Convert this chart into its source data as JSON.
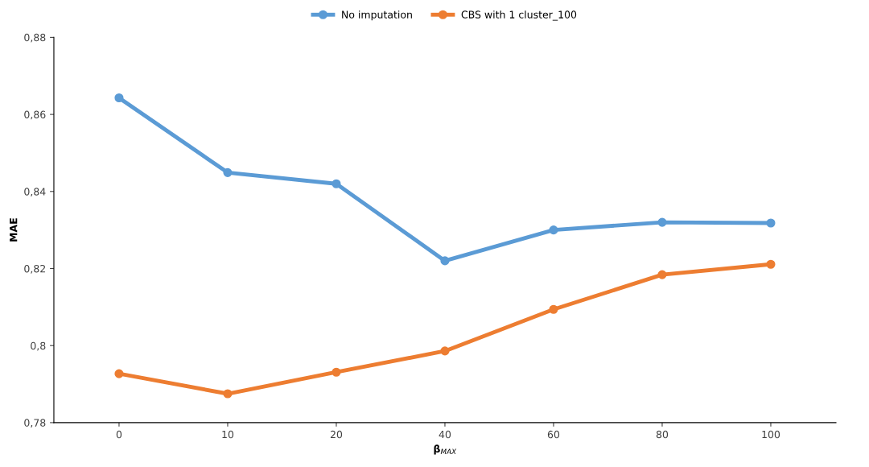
{
  "chart_data": {
    "type": "line",
    "xlabel": "β$_{MAX}$",
    "ylabel": "MAE",
    "categories": [
      "0",
      "10",
      "20",
      "40",
      "60",
      "80",
      "100"
    ],
    "series": [
      {
        "name": "No imputation",
        "color": "#5b9bd5",
        "values": [
          0.8643,
          0.8449,
          0.842,
          0.822,
          0.83,
          0.832,
          0.8318
        ]
      },
      {
        "name": "CBS with 1 cluster_100",
        "color": "#ed7d31",
        "values": [
          0.7927,
          0.7875,
          0.7931,
          0.7986,
          0.8094,
          0.8184,
          0.8211
        ]
      }
    ],
    "ylim": [
      0.78,
      0.88
    ],
    "yticks": [
      {
        "value": 0.78,
        "label": "0,78"
      },
      {
        "value": 0.8,
        "label": "0,8"
      },
      {
        "value": 0.82,
        "label": "0,82"
      },
      {
        "value": 0.84,
        "label": "0,84"
      },
      {
        "value": 0.86,
        "label": "0,86"
      },
      {
        "value": 0.88,
        "label": "0,88"
      }
    ],
    "grid": false,
    "legend": "top",
    "marker": "circle",
    "line_style": "solid"
  }
}
